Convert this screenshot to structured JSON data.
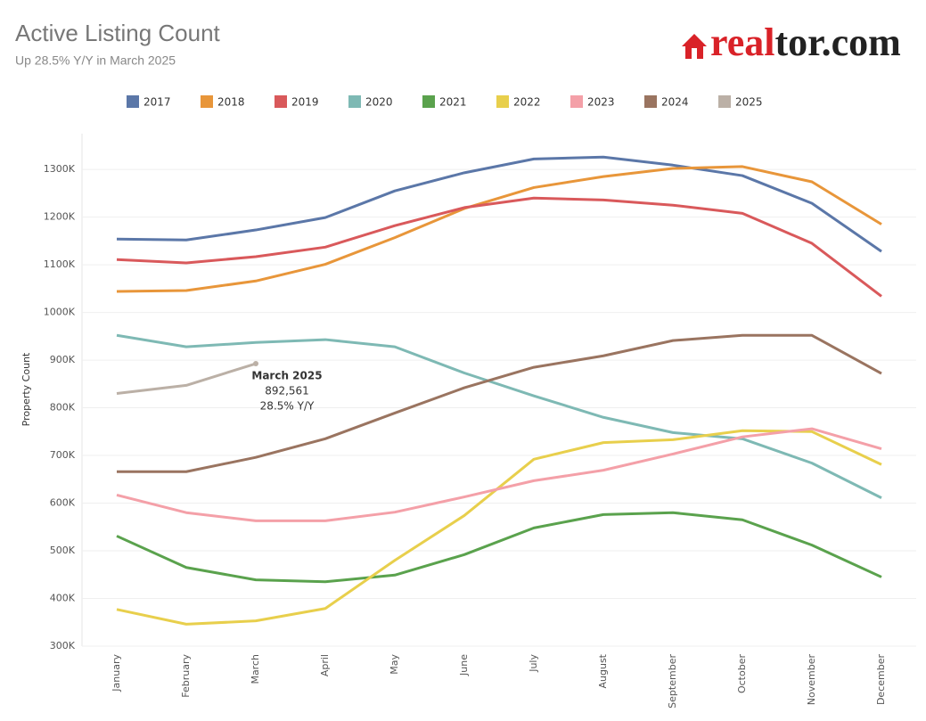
{
  "logo": {
    "part1": "real",
    "part2": "tor.com"
  },
  "chart_data": {
    "type": "line",
    "title": "Active Listing Count",
    "subtitle": "Up 28.5% Y/Y in March 2025",
    "y_label": "Property Count",
    "categories": [
      "January",
      "February",
      "March",
      "April",
      "May",
      "June",
      "July",
      "August",
      "September",
      "October",
      "November",
      "December"
    ],
    "ylim": [
      300000,
      1375000
    ],
    "yticks": [
      {
        "value": 300000,
        "label": "300K"
      },
      {
        "value": 400000,
        "label": "400K"
      },
      {
        "value": 500000,
        "label": "500K"
      },
      {
        "value": 600000,
        "label": "600K"
      },
      {
        "value": 700000,
        "label": "700K"
      },
      {
        "value": 800000,
        "label": "800K"
      },
      {
        "value": 900000,
        "label": "900K"
      },
      {
        "value": 1000000,
        "label": "1000K"
      },
      {
        "value": 1100000,
        "label": "1100K"
      },
      {
        "value": 1200000,
        "label": "1200K"
      },
      {
        "value": 1300000,
        "label": "1300K"
      }
    ],
    "grid": true,
    "series": [
      {
        "name": "2017",
        "color": "#5b77a8",
        "values": [
          1154000,
          1152000,
          1173000,
          1199000,
          1255000,
          1293000,
          1322000,
          1326000,
          1309000,
          1287000,
          1229000,
          1128000
        ]
      },
      {
        "name": "2018",
        "color": "#e8963a",
        "values": [
          1044000,
          1046000,
          1066000,
          1101000,
          1157000,
          1218000,
          1262000,
          1285000,
          1302000,
          1306000,
          1274000,
          1185000
        ]
      },
      {
        "name": "2019",
        "color": "#d9595b",
        "values": [
          1111000,
          1104000,
          1117000,
          1137000,
          1182000,
          1220000,
          1240000,
          1236000,
          1225000,
          1208000,
          1145000,
          1034000
        ]
      },
      {
        "name": "2020",
        "color": "#7eb9b4",
        "values": [
          952000,
          928000,
          937000,
          943000,
          928000,
          873000,
          825000,
          780000,
          748000,
          735000,
          684000,
          611000
        ]
      },
      {
        "name": "2021",
        "color": "#5aa24d",
        "values": [
          531000,
          465000,
          439000,
          435000,
          449000,
          492000,
          548000,
          576000,
          580000,
          565000,
          512000,
          445000
        ]
      },
      {
        "name": "2022",
        "color": "#e8cf4c",
        "values": [
          377000,
          346000,
          353000,
          379000,
          480000,
          574000,
          692000,
          727000,
          733000,
          752000,
          750000,
          681000
        ]
      },
      {
        "name": "2023",
        "color": "#f4a0a8",
        "values": [
          617000,
          580000,
          563000,
          563000,
          581000,
          613000,
          647000,
          669000,
          703000,
          739000,
          756000,
          714000
        ]
      },
      {
        "name": "2024",
        "color": "#9a7460",
        "values": [
          666000,
          666000,
          696000,
          735000,
          789000,
          842000,
          885000,
          909000,
          941000,
          952000,
          952000,
          872000
        ]
      },
      {
        "name": "2025",
        "color": "#bbb0a6",
        "values": [
          830000,
          847000,
          892561,
          null,
          null,
          null,
          null,
          null,
          null,
          null,
          null,
          null
        ]
      }
    ],
    "annotation": {
      "lines": [
        "March 2025",
        "892,561",
        "28.5% Y/Y"
      ]
    }
  }
}
